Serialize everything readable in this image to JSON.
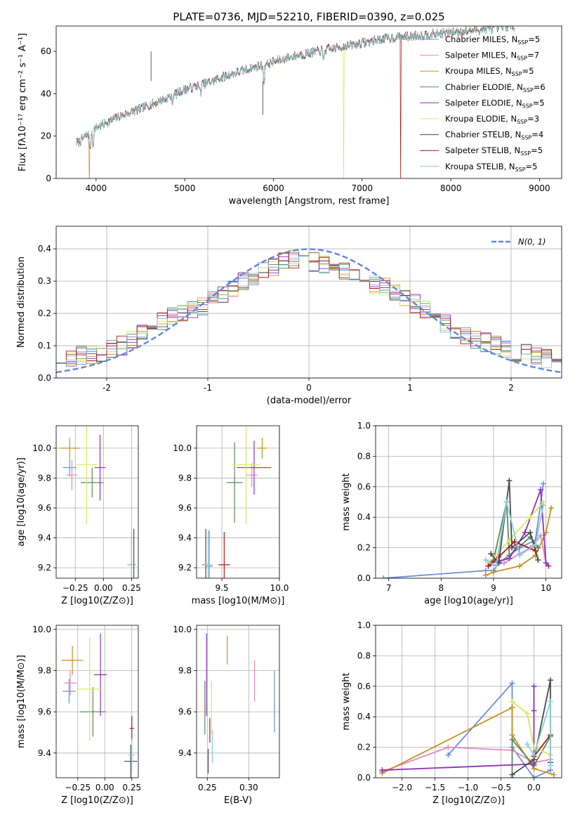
{
  "figure_title": "PLATE=0736, MJD=52210, FIBERID=0390, z=0.025",
  "chart_data": [
    {
      "id": "spectrum",
      "type": "line",
      "xlabel": "wavelength [Angstrom, rest frame]",
      "ylabel": "Flux [fλ10⁻¹⁷ erg cm⁻² s⁻¹ A⁻¹]",
      "xlim": [
        3550,
        9250
      ],
      "ylim": [
        0,
        72
      ],
      "xticks": [
        4000,
        5000,
        6000,
        7000,
        8000,
        9000
      ],
      "yticks": [
        0,
        20,
        40,
        60
      ],
      "x": [
        3800,
        4000,
        4250,
        4500,
        4750,
        5000,
        5250,
        5500,
        5750,
        6000,
        6250,
        6500,
        6750,
        7000,
        7250,
        7500,
        7750,
        8000,
        8250,
        8500,
        8700
      ],
      "y": [
        17,
        24,
        29,
        33,
        37,
        42,
        45,
        49,
        52,
        55,
        58,
        60,
        62,
        64,
        66,
        67,
        68,
        69,
        70,
        71,
        72
      ],
      "dips": [
        {
          "series": 5,
          "x": 6790
        },
        {
          "series": 7,
          "x": 7430
        },
        {
          "series": 2,
          "x": 3920
        }
      ],
      "legend_loc": "upper right",
      "series": [
        {
          "name": "Chabrier MILES, N",
          "sub": "SSP",
          "suffix": "=5",
          "color": "#6a8fd8"
        },
        {
          "name": "Salpeter MILES, N",
          "sub": "SSP",
          "suffix": "=7",
          "color": "#e489c2"
        },
        {
          "name": "Kroupa MILES, N",
          "sub": "SSP",
          "suffix": "=5",
          "color": "#c8901a"
        },
        {
          "name": "Chabrier ELODIE, N",
          "sub": "SSP",
          "suffix": "=6",
          "color": "#5a8a5a"
        },
        {
          "name": "Salpeter ELODIE, N",
          "sub": "SSP",
          "suffix": "=5",
          "color": "#8e30b8"
        },
        {
          "name": "Kroupa ELODIE, N",
          "sub": "SSP",
          "suffix": "=3",
          "color": "#d8e860"
        },
        {
          "name": "Chabrier STELIB, N",
          "sub": "SSP",
          "suffix": "=4",
          "color": "#4a4a4a"
        },
        {
          "name": "Salpeter STELIB, N",
          "sub": "SSP",
          "suffix": "=5",
          "color": "#b01818"
        },
        {
          "name": "Kroupa STELIB, N",
          "sub": "SSP",
          "suffix": "=5",
          "color": "#86d0d8"
        }
      ],
      "grid": false
    },
    {
      "id": "residuals",
      "type": "histogram",
      "xlabel": "(data-model)/error",
      "ylabel": "Normed distribution",
      "xlim": [
        -2.5,
        2.5
      ],
      "ylim": [
        0,
        0.47
      ],
      "xticks": [
        -2,
        -1,
        0,
        1,
        2
      ],
      "yticks": [
        0.0,
        0.1,
        0.2,
        0.3,
        0.4
      ],
      "bin_width": 0.1,
      "bin_start": -2.5,
      "reference_values": [
        0.06,
        0.06,
        0.07,
        0.07,
        0.08,
        0.09,
        0.1,
        0.12,
        0.14,
        0.17,
        0.18,
        0.19,
        0.2,
        0.21,
        0.22,
        0.24,
        0.26,
        0.28,
        0.3,
        0.31,
        0.33,
        0.34,
        0.36,
        0.37,
        0.37,
        0.36,
        0.35,
        0.34,
        0.33,
        0.32,
        0.3,
        0.29,
        0.28,
        0.27,
        0.25,
        0.23,
        0.21,
        0.19,
        0.17,
        0.15,
        0.13,
        0.12,
        0.11,
        0.1,
        0.09,
        0.08,
        0.08,
        0.07,
        0.06,
        0.05
      ],
      "gaussian_label": "N(0, 1)",
      "gaussian_color": "#5f87d8",
      "legend_loc": "upper right",
      "grid": true
    },
    {
      "id": "age-vs-Z",
      "type": "errorbar",
      "xlabel": "Z [log10(Z/Z⊙)]",
      "ylabel": "age  [log10(age/yr)]",
      "xlim": [
        -0.42,
        0.31
      ],
      "ylim": [
        9.13,
        10.15
      ],
      "xticks": [
        -0.25,
        0.0,
        0.25
      ],
      "xticklabels": [
        "−0.25",
        "0.00",
        "0.25"
      ],
      "yticks": [
        9.2,
        9.4,
        9.6,
        9.8,
        10.0
      ],
      "points": [
        {
          "s": 0,
          "x": -0.3,
          "y": 9.87,
          "xe": 0.06,
          "ye": 0.06
        },
        {
          "s": 1,
          "x": -0.28,
          "y": 9.82,
          "xe": 0.05,
          "ye": 0.1
        },
        {
          "s": 2,
          "x": -0.3,
          "y": 10.0,
          "xe": 0.09,
          "ye": 0.07
        },
        {
          "s": 3,
          "x": -0.1,
          "y": 9.77,
          "xe": 0.1,
          "ye": 0.1
        },
        {
          "s": 4,
          "x": -0.03,
          "y": 9.87,
          "xe": 0.05,
          "ye": 0.22
        },
        {
          "s": 5,
          "x": -0.15,
          "y": 9.89,
          "xe": 0.1,
          "ye": 0.4
        },
        {
          "s": 6,
          "x": 0.27,
          "y": 9.22,
          "xe": 0.02,
          "ye": 0.24
        },
        {
          "s": 7,
          "x": 0.25,
          "y": 9.22,
          "xe": 0.03,
          "ye": 0.2
        },
        {
          "s": 8,
          "x": 0.25,
          "y": 9.22,
          "xe": 0.04,
          "ye": 0.22
        }
      ],
      "grid": true
    },
    {
      "id": "age-vs-mass",
      "type": "errorbar",
      "xlabel": "mass [log10(M/M⊙)]",
      "ylabel": "",
      "xlim": [
        9.28,
        10.0
      ],
      "ylim": [
        9.13,
        10.15
      ],
      "xticks": [
        9.5,
        10.0
      ],
      "xticklabels": [
        "9.5",
        "10.0"
      ],
      "yticks": [
        9.2,
        9.4,
        9.6,
        9.8,
        10.0
      ],
      "points": [
        {
          "s": 0,
          "x": 9.39,
          "y": 9.21,
          "xe": 0.03,
          "ye": 0.24
        },
        {
          "s": 1,
          "x": 9.76,
          "y": 9.82,
          "xe": 0.05,
          "ye": 0.08
        },
        {
          "s": 2,
          "x": 9.85,
          "y": 10.0,
          "xe": 0.04,
          "ye": 0.07
        },
        {
          "s": 3,
          "x": 9.61,
          "y": 9.77,
          "xe": 0.07,
          "ye": 0.27
        },
        {
          "s": 4,
          "x": 9.78,
          "y": 9.87,
          "xe": 0.15,
          "ye": 0.18
        },
        {
          "s": 5,
          "x": 9.71,
          "y": 9.89,
          "xe": 0.12,
          "ye": 0.4
        },
        {
          "s": 6,
          "x": 9.36,
          "y": 9.22,
          "xe": 0.03,
          "ye": 0.24
        },
        {
          "s": 7,
          "x": 9.52,
          "y": 9.22,
          "xe": 0.05,
          "ye": 0.22
        },
        {
          "s": 8,
          "x": 9.38,
          "y": 9.22,
          "xe": 0.04,
          "ye": 0.23
        }
      ],
      "grid": true
    },
    {
      "id": "weight-vs-age",
      "type": "line",
      "xlabel": "age  [log10(age/yr)]",
      "ylabel": "mass weight",
      "xlim": [
        6.75,
        10.3
      ],
      "ylim": [
        0,
        1.0
      ],
      "xticks": [
        7,
        8,
        9,
        10
      ],
      "yticks": [
        0.0,
        0.2,
        0.4,
        0.6,
        0.8,
        1.0
      ],
      "series": [
        {
          "s": 0,
          "pts": [
            [
              6.9,
              0.0
            ],
            [
              8.85,
              0.05
            ],
            [
              9.0,
              0.05
            ],
            [
              9.1,
              0.1
            ],
            [
              9.5,
              0.2
            ],
            [
              9.8,
              0.25
            ],
            [
              9.95,
              0.62
            ]
          ]
        },
        {
          "s": 1,
          "pts": [
            [
              8.9,
              0.08
            ],
            [
              9.2,
              0.1
            ],
            [
              9.5,
              0.16
            ],
            [
              9.7,
              0.2
            ],
            [
              9.9,
              0.28
            ],
            [
              10.0,
              0.1
            ]
          ]
        },
        {
          "s": 2,
          "pts": [
            [
              8.85,
              0.02
            ],
            [
              9.0,
              0.04
            ],
            [
              9.5,
              0.08
            ],
            [
              9.8,
              0.15
            ],
            [
              10.0,
              0.3
            ],
            [
              10.1,
              0.46
            ]
          ]
        },
        {
          "s": 3,
          "pts": [
            [
              8.9,
              0.1
            ],
            [
              9.0,
              0.12
            ],
            [
              9.25,
              0.5
            ],
            [
              9.3,
              0.15
            ],
            [
              9.7,
              0.27
            ],
            [
              9.85,
              0.2
            ]
          ]
        },
        {
          "s": 4,
          "pts": [
            [
              8.95,
              0.1
            ],
            [
              9.3,
              0.13
            ],
            [
              9.6,
              0.3
            ],
            [
              9.9,
              0.58
            ],
            [
              10.0,
              0.1
            ],
            [
              10.05,
              0.08
            ]
          ]
        },
        {
          "s": 5,
          "pts": [
            [
              8.9,
              0.1
            ],
            [
              9.3,
              0.25
            ],
            [
              9.7,
              0.4
            ],
            [
              9.95,
              0.5
            ]
          ]
        },
        {
          "s": 6,
          "pts": [
            [
              8.95,
              0.16
            ],
            [
              9.1,
              0.1
            ],
            [
              9.3,
              0.64
            ],
            [
              9.35,
              0.2
            ],
            [
              9.7,
              0.3
            ],
            [
              9.85,
              0.12
            ]
          ]
        },
        {
          "s": 7,
          "pts": [
            [
              8.9,
              0.08
            ],
            [
              9.1,
              0.14
            ],
            [
              9.4,
              0.24
            ],
            [
              9.8,
              0.18
            ]
          ]
        },
        {
          "s": 8,
          "pts": [
            [
              8.85,
              0.12
            ],
            [
              9.05,
              0.08
            ],
            [
              9.25,
              0.5
            ],
            [
              9.5,
              0.15
            ],
            [
              9.8,
              0.22
            ],
            [
              9.95,
              0.48
            ]
          ]
        }
      ],
      "grid": true
    },
    {
      "id": "mass-vs-Z",
      "type": "errorbar",
      "xlabel": "Z [log10(Z/Z⊙)]",
      "ylabel": "mass [log10(M/M⊙)]",
      "xlim": [
        -0.45,
        0.31
      ],
      "ylim": [
        9.28,
        10.02
      ],
      "xticks": [
        -0.25,
        0.0,
        0.25
      ],
      "xticklabels": [
        "−0.25",
        "0.00",
        "0.25"
      ],
      "yticks": [
        9.4,
        9.6,
        9.8,
        10.0
      ],
      "points": [
        {
          "s": 0,
          "x": -0.33,
          "y": 9.7,
          "xe": 0.06,
          "ye": 0.06
        },
        {
          "s": 1,
          "x": -0.32,
          "y": 9.74,
          "xe": 0.06,
          "ye": 0.06
        },
        {
          "s": 2,
          "x": -0.3,
          "y": 9.85,
          "xe": 0.1,
          "ye": 0.07
        },
        {
          "s": 3,
          "x": -0.11,
          "y": 9.6,
          "xe": 0.12,
          "ye": 0.12
        },
        {
          "s": 4,
          "x": -0.04,
          "y": 9.78,
          "xe": 0.06,
          "ye": 0.2
        },
        {
          "s": 5,
          "x": -0.14,
          "y": 9.71,
          "xe": 0.12,
          "ye": 0.25
        },
        {
          "s": 6,
          "x": 0.24,
          "y": 9.36,
          "xe": 0.06,
          "ye": 0.08
        },
        {
          "s": 7,
          "x": 0.25,
          "y": 9.52,
          "xe": 0.02,
          "ye": 0.06
        },
        {
          "s": 8,
          "x": 0.25,
          "y": 9.39,
          "xe": 0.03,
          "ye": 0.08
        }
      ],
      "grid": true
    },
    {
      "id": "mass-vs-EBV",
      "type": "errorbar",
      "xlabel": "E(B-V)",
      "ylabel": "",
      "xlim": [
        0.237,
        0.337
      ],
      "ylim": [
        9.28,
        10.02
      ],
      "xticks": [
        0.25,
        0.3
      ],
      "xticklabels": [
        "0.25",
        "0.30"
      ],
      "yticks": [
        9.4,
        9.6,
        9.8,
        10.0
      ],
      "points": [
        {
          "s": 0,
          "x": 0.331,
          "y": 9.65,
          "xe": 0,
          "ye": 0.15
        },
        {
          "s": 1,
          "x": 0.307,
          "y": 9.75,
          "xe": 0,
          "ye": 0.1
        },
        {
          "s": 2,
          "x": 0.274,
          "y": 9.9,
          "xe": 0,
          "ye": 0.07
        },
        {
          "s": 3,
          "x": 0.247,
          "y": 9.62,
          "xe": 0,
          "ye": 0.13
        },
        {
          "s": 4,
          "x": 0.249,
          "y": 9.78,
          "xe": 0,
          "ye": 0.2
        },
        {
          "s": 5,
          "x": 0.255,
          "y": 9.62,
          "xe": 0,
          "ye": 0.13
        },
        {
          "s": 6,
          "x": 0.251,
          "y": 9.36,
          "xe": 0,
          "ye": 0.06
        },
        {
          "s": 7,
          "x": 0.253,
          "y": 9.51,
          "xe": 0,
          "ye": 0.06
        },
        {
          "s": 8,
          "x": 0.256,
          "y": 9.43,
          "xe": 0,
          "ye": 0.08
        }
      ],
      "grid": true
    },
    {
      "id": "weight-vs-Z",
      "type": "line",
      "xlabel": "Z [log10(Z/Z⊙)]",
      "ylabel": "mass weight",
      "xlim": [
        -2.4,
        0.42
      ],
      "ylim": [
        0,
        1.0
      ],
      "xticks": [
        -2.0,
        -1.5,
        -1.0,
        -0.5,
        0.0
      ],
      "xticklabels": [
        "−2.0",
        "−1.5",
        "−1.0",
        "−0.5",
        "0.0"
      ],
      "yticks": [
        0.0,
        0.2,
        0.4,
        0.6,
        0.8,
        1.0
      ],
      "series": [
        {
          "s": 0,
          "pts": [
            [
              -1.3,
              0.15
            ],
            [
              -0.33,
              0.62
            ],
            [
              -0.33,
              0.2
            ],
            [
              0.0,
              0.0
            ],
            [
              0.25,
              0.05
            ]
          ]
        },
        {
          "s": 1,
          "pts": [
            [
              -2.3,
              0.04
            ],
            [
              -1.3,
              0.2
            ],
            [
              -0.33,
              0.18
            ],
            [
              0.0,
              0.1
            ],
            [
              0.25,
              0.12
            ]
          ]
        },
        {
          "s": 2,
          "pts": [
            [
              -2.3,
              0.03
            ],
            [
              -0.33,
              0.46
            ],
            [
              -0.33,
              0.28
            ],
            [
              0.0,
              0.06
            ],
            [
              0.3,
              0.02
            ]
          ]
        },
        {
          "s": 3,
          "pts": [
            [
              -0.33,
              0.0
            ],
            [
              -0.33,
              0.25
            ],
            [
              0.0,
              0.08
            ],
            [
              0.25,
              0.27
            ]
          ]
        },
        {
          "s": 4,
          "pts": [
            [
              -2.3,
              0.05
            ],
            [
              0.0,
              0.09
            ],
            [
              0.0,
              0.6
            ],
            [
              0.0,
              0.44
            ]
          ]
        },
        {
          "s": 5,
          "pts": [
            [
              -0.33,
              0.5
            ],
            [
              -0.1,
              0.42
            ],
            [
              0.0,
              0.2
            ],
            [
              0.25,
              0.15
            ]
          ]
        },
        {
          "s": 6,
          "pts": [
            [
              -0.33,
              0.02
            ],
            [
              0.0,
              0.12
            ],
            [
              0.25,
              0.64
            ],
            [
              0.25,
              0.1
            ]
          ]
        },
        {
          "s": 7,
          "pts": [
            [
              0.0,
              0.14
            ],
            [
              0.25,
              0.28
            ]
          ]
        },
        {
          "s": 8,
          "pts": [
            [
              -0.1,
              0.22
            ],
            [
              0.0,
              0.15
            ],
            [
              0.25,
              0.5
            ],
            [
              0.25,
              0.08
            ]
          ]
        }
      ],
      "grid": true
    }
  ]
}
